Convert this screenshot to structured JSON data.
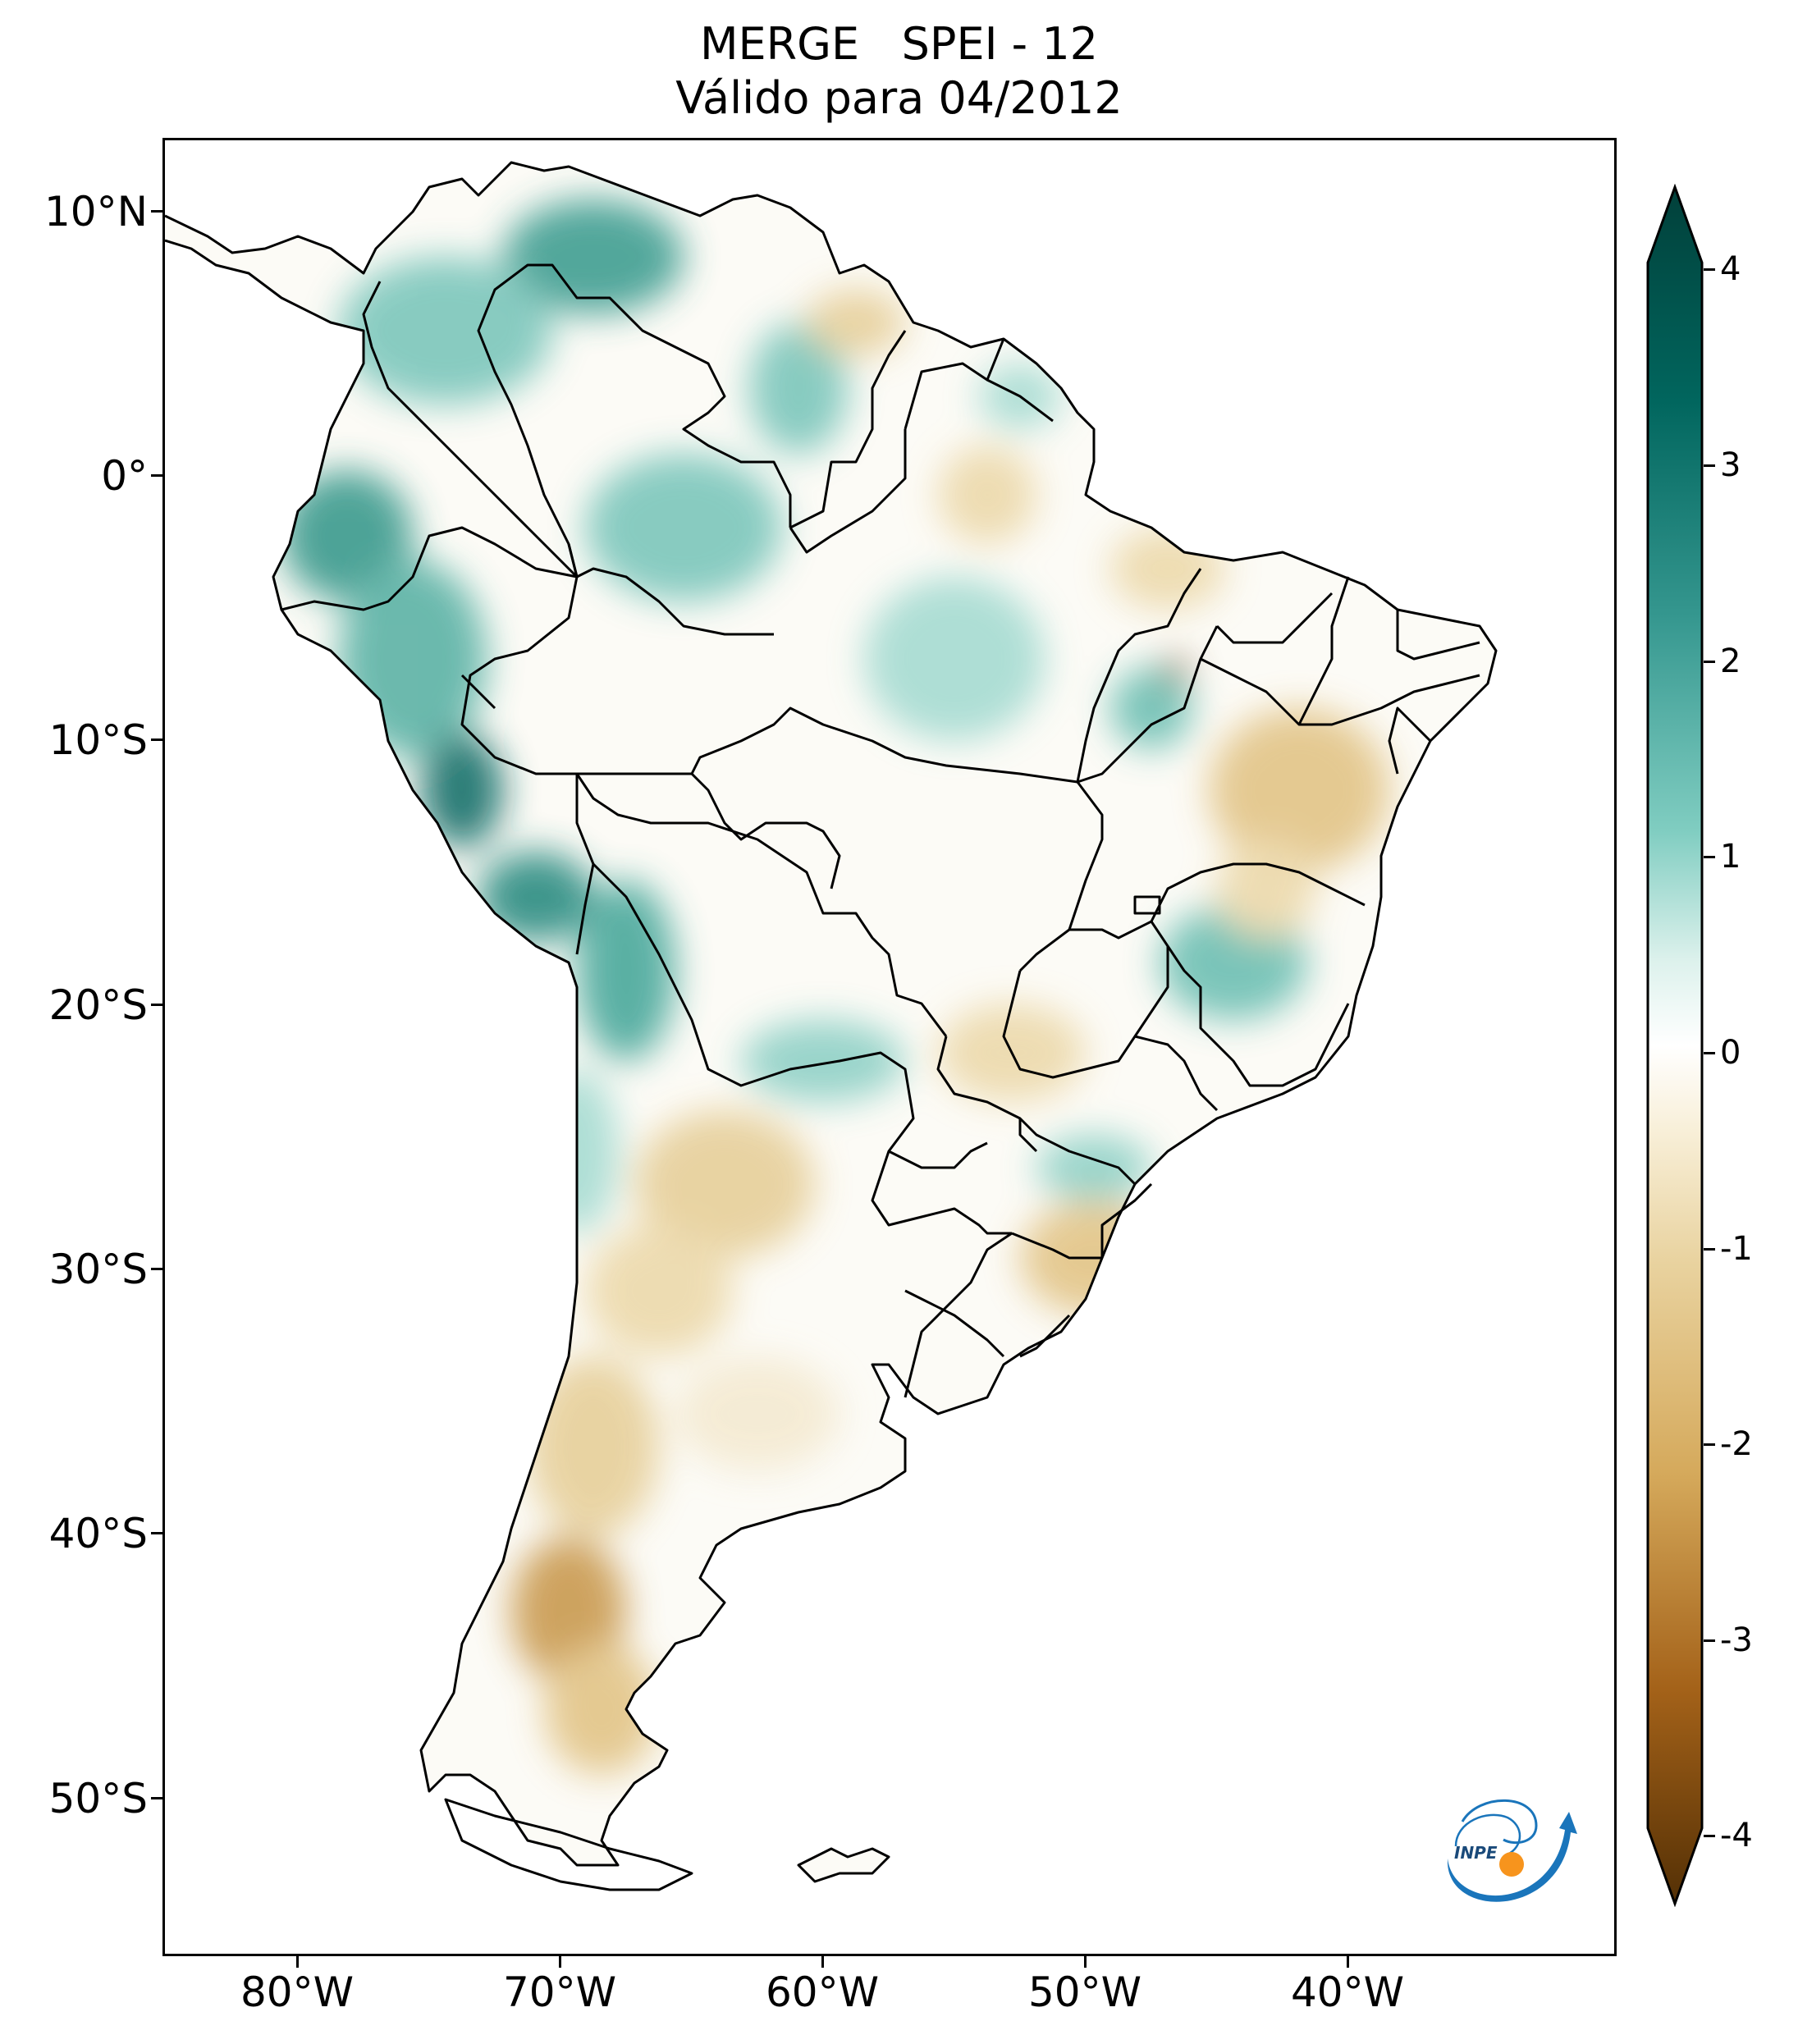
{
  "title": {
    "line1": "MERGE   SPEI - 12",
    "line2": "Válido para 04/2012"
  },
  "axes": {
    "lat_labels": [
      "10°N",
      "0°",
      "10°S",
      "20°S",
      "30°S",
      "40°S",
      "50°S"
    ],
    "lon_labels": [
      "80°W",
      "70°W",
      "60°W",
      "50°W",
      "40°W"
    ]
  },
  "colorbar": {
    "labels": [
      "4",
      "3",
      "2",
      "1",
      "0",
      "-1",
      "-2",
      "-3",
      "-4"
    ],
    "min": -4,
    "max": 4,
    "colors": {
      "wet_max": "#01403a",
      "wet_mid": "#35978f",
      "wet_low": "#c7eae5",
      "neutral": "#ffffff",
      "dry_low": "#f6e8c3",
      "dry_mid": "#bf812d",
      "dry_max": "#543005"
    }
  },
  "logo": {
    "text": "INPE",
    "colors": {
      "arc": "#1a75bb",
      "dot": "#f7941d"
    }
  }
}
